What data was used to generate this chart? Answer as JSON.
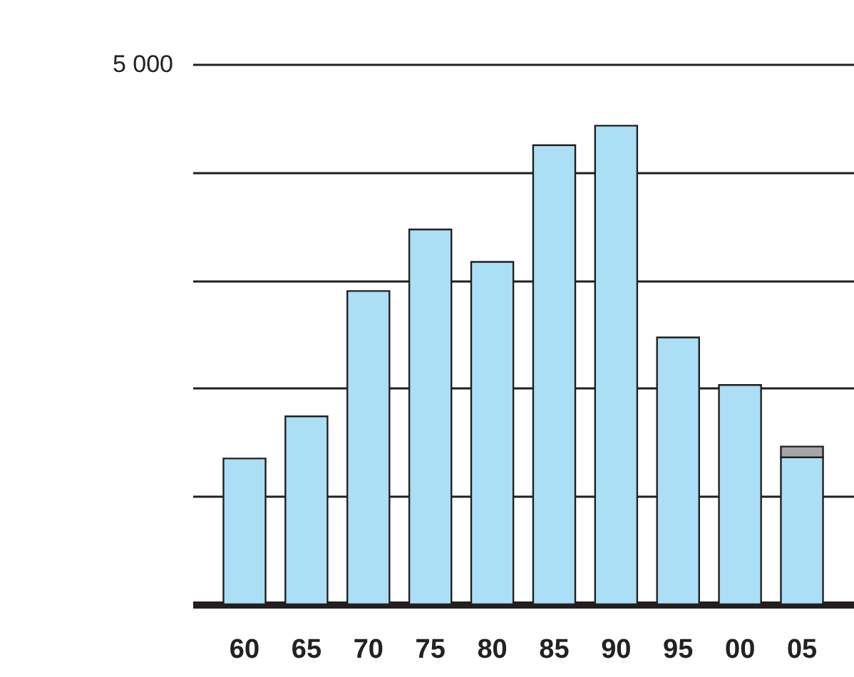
{
  "chart_data": {
    "type": "bar",
    "stacked": true,
    "grid": "y",
    "legend": false,
    "categories": [
      "60",
      "65",
      "70",
      "75",
      "80",
      "85",
      "90",
      "95",
      "00",
      "05"
    ],
    "series": [
      {
        "color": "#aadff5",
        "values": [
          1350,
          1740,
          2900,
          3470,
          3170,
          4250,
          4430,
          2470,
          2030,
          1360
        ]
      },
      {
        "color": "#a6a6a8",
        "values": [
          null,
          null,
          null,
          null,
          null,
          null,
          null,
          null,
          null,
          100
        ]
      }
    ],
    "ylim": [
      0,
      5000
    ],
    "yticks": [
      {
        "value": 0,
        "label": null
      },
      {
        "value": 1000,
        "label": null
      },
      {
        "value": 2000,
        "label": null
      },
      {
        "value": 3000,
        "label": null
      },
      {
        "value": 4000,
        "label": null
      },
      {
        "value": 5000,
        "label": "5 000"
      }
    ]
  }
}
